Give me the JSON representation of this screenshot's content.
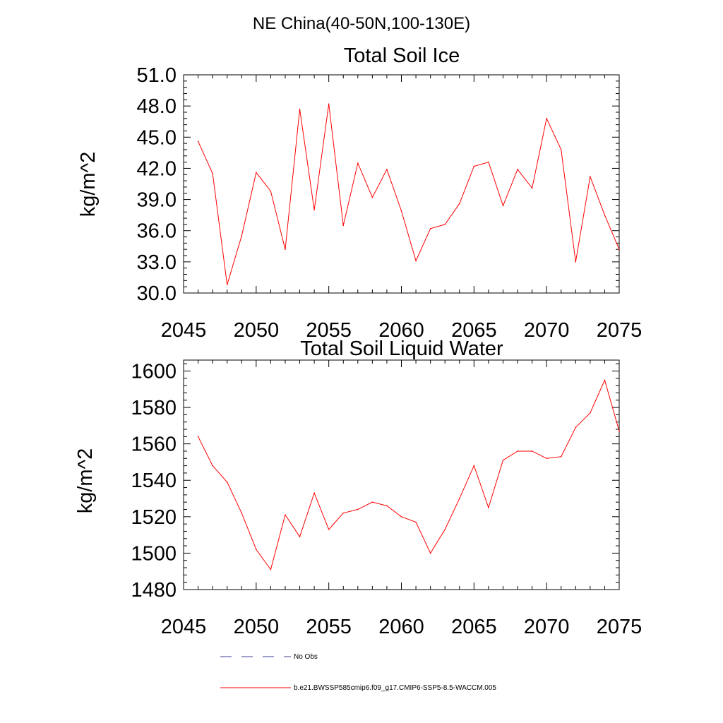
{
  "figure": {
    "title": "NE China(40-50N,100-130E)"
  },
  "chart_data": [
    {
      "type": "line",
      "title": "Total Soil Ice",
      "xlabel": "",
      "ylabel": "kg/m^2",
      "xlim": [
        2045,
        2075
      ],
      "ylim": [
        30.0,
        51.0
      ],
      "x_ticks": [
        2045,
        2050,
        2055,
        2060,
        2065,
        2070,
        2075
      ],
      "x_tick_labels": [
        "2045",
        "2050",
        "2055",
        "2060",
        "2065",
        "2070",
        "2075"
      ],
      "y_ticks": [
        30,
        33,
        36,
        39,
        42,
        45,
        48,
        51
      ],
      "y_tick_labels": [
        "30.0",
        "33.0",
        "36.0",
        "39.0",
        "42.0",
        "45.0",
        "48.0",
        "51.0"
      ],
      "grid": false,
      "series": [
        {
          "color": "#ff0000",
          "x": [
            2046,
            2047,
            2048,
            2049,
            2050,
            2051,
            2052,
            2053,
            2054,
            2055,
            2056,
            2057,
            2058,
            2059,
            2060,
            2061,
            2062,
            2063,
            2064,
            2065,
            2066,
            2067,
            2068,
            2069,
            2070,
            2071,
            2072,
            2073,
            2074,
            2075
          ],
          "values": [
            44.6,
            41.5,
            30.8,
            35.5,
            41.6,
            39.8,
            34.2,
            47.7,
            38.0,
            48.2,
            36.5,
            42.5,
            39.2,
            41.9,
            37.9,
            33.1,
            36.2,
            36.6,
            38.6,
            42.2,
            42.6,
            38.4,
            41.9,
            40.1,
            46.8,
            43.8,
            33.0,
            41.2,
            37.5,
            34.2
          ]
        }
      ]
    },
    {
      "type": "line",
      "title": "Total Soil Liquid Water",
      "xlabel": "",
      "ylabel": "kg/m^2",
      "xlim": [
        2045,
        2075
      ],
      "ylim": [
        1480,
        1606
      ],
      "x_ticks": [
        2045,
        2050,
        2055,
        2060,
        2065,
        2070,
        2075
      ],
      "x_tick_labels": [
        "2045",
        "2050",
        "2055",
        "2060",
        "2065",
        "2070",
        "2075"
      ],
      "y_ticks": [
        1480,
        1500,
        1520,
        1540,
        1560,
        1580,
        1600
      ],
      "y_tick_labels": [
        "1480",
        "1500",
        "1520",
        "1540",
        "1560",
        "1580",
        "1600"
      ],
      "grid": false,
      "series": [
        {
          "color": "#ff0000",
          "x": [
            2046,
            2047,
            2048,
            2049,
            2050,
            2051,
            2052,
            2053,
            2054,
            2055,
            2056,
            2057,
            2058,
            2059,
            2060,
            2061,
            2062,
            2063,
            2064,
            2065,
            2066,
            2067,
            2068,
            2069,
            2070,
            2071,
            2072,
            2073,
            2074,
            2075
          ],
          "values": [
            1564,
            1548,
            1539,
            1522,
            1502,
            1491,
            1521,
            1509,
            1533,
            1513,
            1522,
            1524,
            1528,
            1526,
            1520,
            1517,
            1500,
            1513,
            1530,
            1548,
            1525,
            1551,
            1556,
            1556,
            1552,
            1553,
            1569,
            1577,
            1595,
            1567
          ]
        }
      ]
    }
  ],
  "legend": {
    "entries": [
      {
        "label": "No Obs",
        "color": "#3c3c96",
        "dash": "dashed"
      },
      {
        "label": "b.e21.BWSSP585cmip6.f09_g17.CMIP6-SSP5-8.5-WACCM.005",
        "color": "#ff0000",
        "dash": "solid"
      }
    ]
  }
}
